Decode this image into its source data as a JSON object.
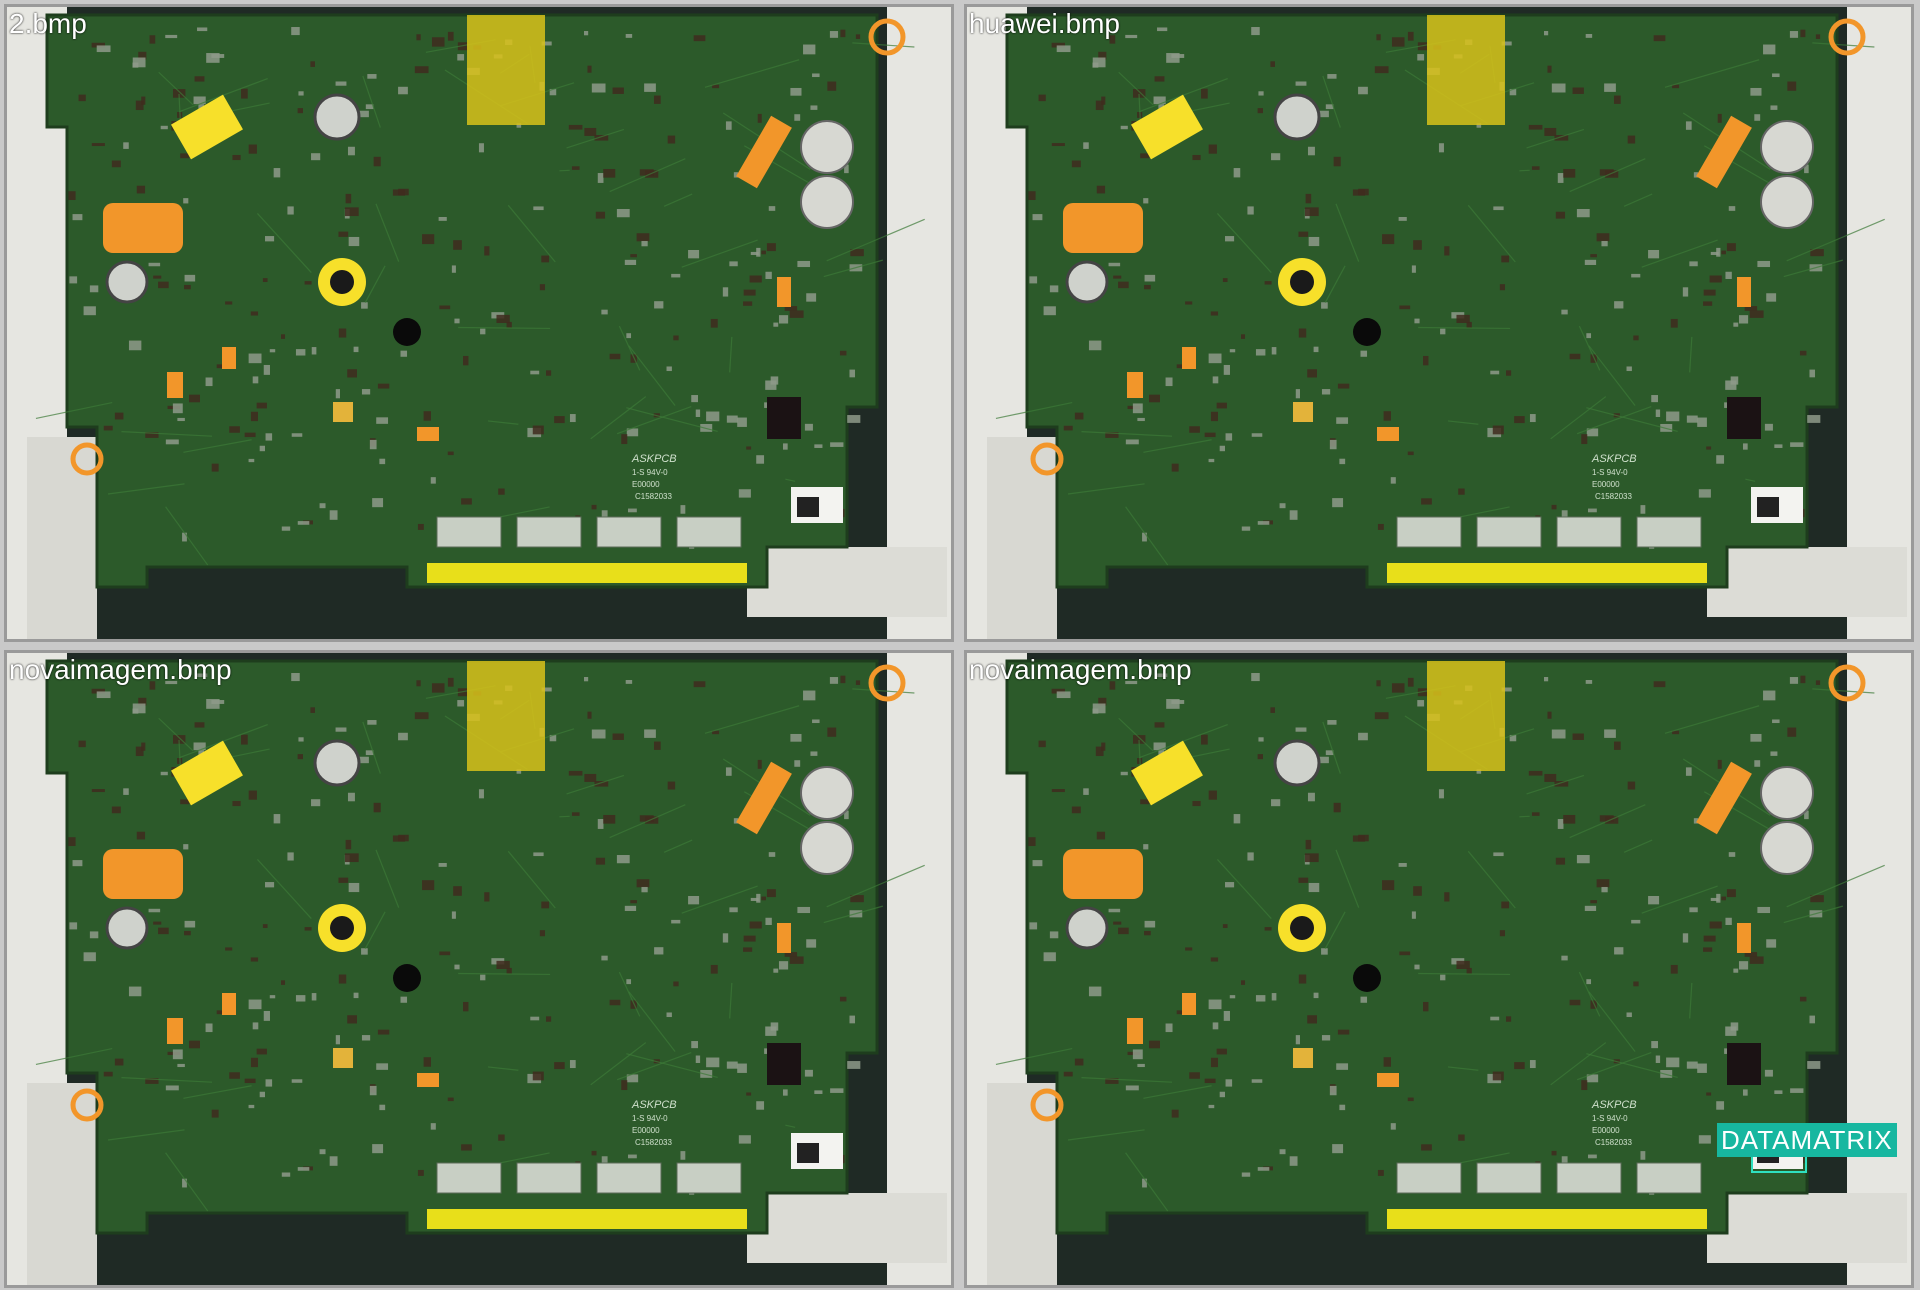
{
  "panes": [
    {
      "title": "2.bmp"
    },
    {
      "title": "huawei.bmp"
    },
    {
      "title": "novaimagem.bmp"
    },
    {
      "title": "novaimagem.bmp",
      "detection": {
        "label": "DATAMATRIX",
        "color": "#17b7a0"
      }
    }
  ],
  "board": {
    "silkscreen_brand": "ASKPCB",
    "silkscreen_rating": "1-S 94V-0",
    "silkscreen_code": "E00000",
    "silkscreen_code2": "C1582033",
    "colors": {
      "pcb": "#2c5a2a",
      "pcb_dark": "#1e3d1d",
      "pad_orange": "#f2962a",
      "pad_yellow": "#f7e02a",
      "fixture": "#e6e6e1",
      "tape": "#d8c21a"
    }
  }
}
